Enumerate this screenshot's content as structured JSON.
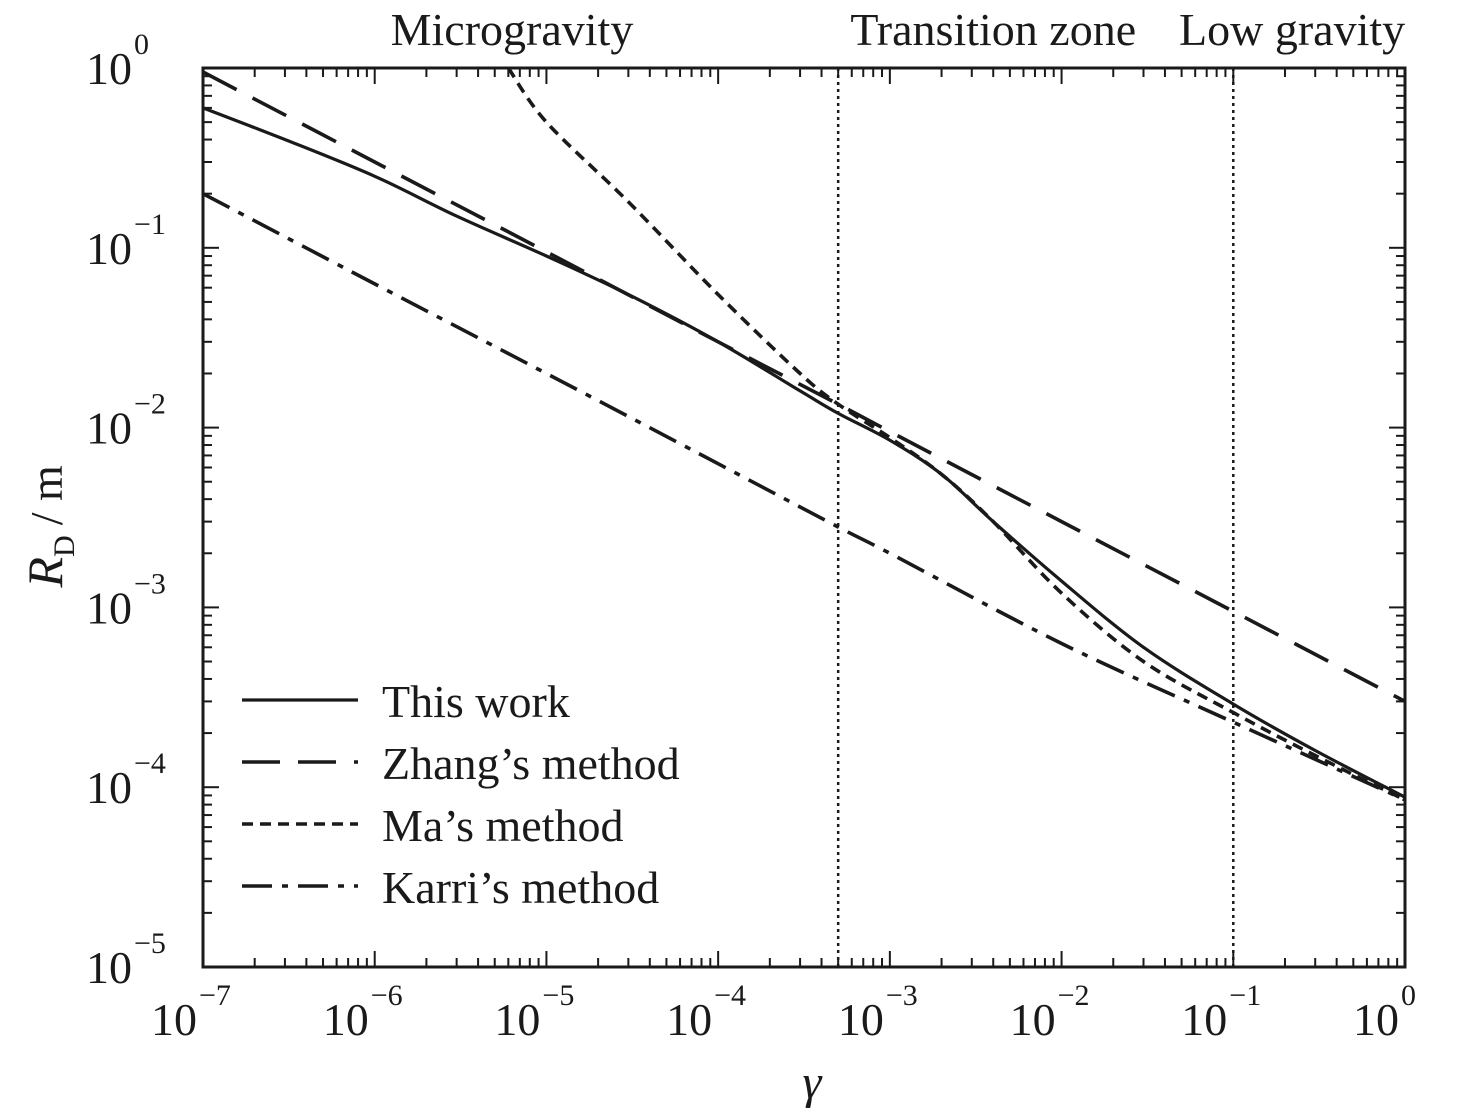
{
  "chart_data": {
    "type": "line",
    "xlabel": "γ",
    "ylabel": {
      "symbol": "R",
      "subscript": "D",
      "unit": "/ m"
    },
    "x_scale": "log",
    "y_scale": "log",
    "xlim": [
      1e-07,
      1
    ],
    "ylim": [
      1e-05,
      1
    ],
    "x_ticks": [
      {
        "value": 1e-07,
        "base": "10",
        "exp": "−7"
      },
      {
        "value": 1e-06,
        "base": "10",
        "exp": "−6"
      },
      {
        "value": 1e-05,
        "base": "10",
        "exp": "−5"
      },
      {
        "value": 0.0001,
        "base": "10",
        "exp": "−4"
      },
      {
        "value": 0.001,
        "base": "10",
        "exp": "−3"
      },
      {
        "value": 0.01,
        "base": "10",
        "exp": "−2"
      },
      {
        "value": 0.1,
        "base": "10",
        "exp": "−1"
      },
      {
        "value": 1,
        "base": "10",
        "exp": "0"
      }
    ],
    "y_ticks": [
      {
        "value": 1e-05,
        "base": "10",
        "exp": "−5"
      },
      {
        "value": 0.0001,
        "base": "10",
        "exp": "−4"
      },
      {
        "value": 0.001,
        "base": "10",
        "exp": "−3"
      },
      {
        "value": 0.01,
        "base": "10",
        "exp": "−2"
      },
      {
        "value": 0.1,
        "base": "10",
        "exp": "−1"
      },
      {
        "value": 1,
        "base": "10",
        "exp": "0"
      }
    ],
    "region_boundaries": [
      0.0005,
      0.1
    ],
    "regions": [
      {
        "label": "Microgravity",
        "center": 6.3e-06
      },
      {
        "label": "Transition zone",
        "center": 0.004
      },
      {
        "label": "Low gravity",
        "center": 0.22
      }
    ],
    "grid": false,
    "legend_position": "bottom-left",
    "series": [
      {
        "name": "This work",
        "style": "solid",
        "x": [
          1e-07,
          3e-07,
          1e-06,
          3e-06,
          1e-05,
          3e-05,
          0.0001,
          0.0003,
          0.0005,
          0.001,
          0.002,
          0.004,
          0.01,
          0.03,
          0.1,
          0.3,
          1
        ],
        "y": [
          0.6,
          0.4,
          0.25,
          0.15,
          0.09,
          0.055,
          0.03,
          0.016,
          0.012,
          0.0085,
          0.0055,
          0.003,
          0.0014,
          0.0006,
          0.00029,
          0.00016,
          8.8e-05
        ]
      },
      {
        "name": "Zhang’s method",
        "style": "dashed",
        "x": [
          1e-07,
          1e-06,
          1e-05,
          0.0001,
          0.0005,
          0.001,
          0.01,
          0.1,
          1
        ],
        "y": [
          0.95,
          0.3,
          0.095,
          0.03,
          0.0135,
          0.0095,
          0.003,
          0.00095,
          0.0003
        ]
      },
      {
        "name": "Ma’s method",
        "style": "dotted",
        "x": [
          6e-06,
          1e-05,
          3e-05,
          0.0001,
          0.0003,
          0.0005,
          0.001,
          0.002,
          0.004,
          0.01,
          0.03,
          0.1,
          0.3,
          1
        ],
        "y": [
          1,
          0.5,
          0.18,
          0.055,
          0.02,
          0.0135,
          0.0088,
          0.0055,
          0.003,
          0.0012,
          0.0005,
          0.00026,
          0.00015,
          8.5e-05
        ]
      },
      {
        "name": "Karri’s method",
        "style": "dashdot",
        "x": [
          1e-07,
          1e-06,
          1e-05,
          0.0001,
          0.0005,
          0.001,
          0.01,
          0.1,
          1
        ],
        "y": [
          0.2,
          0.063,
          0.02,
          0.0063,
          0.0028,
          0.002,
          0.00063,
          0.00023,
          8.5e-05
        ]
      }
    ]
  }
}
